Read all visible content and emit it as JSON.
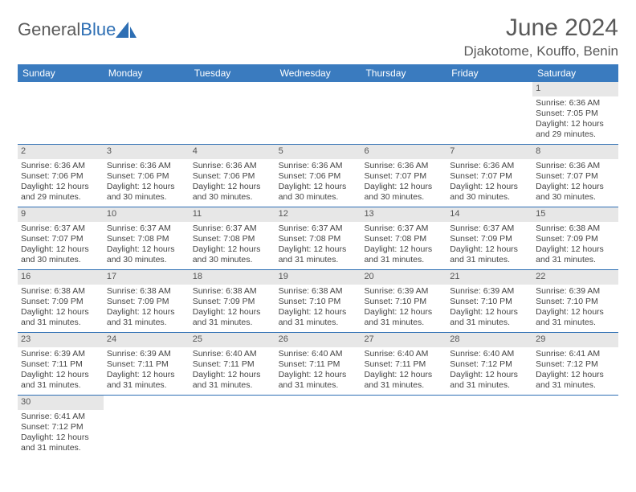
{
  "logo": {
    "text1": "General",
    "text2": "Blue"
  },
  "title": "June 2024",
  "location": "Djakotome, Kouffo, Benin",
  "colors": {
    "header_bg": "#3a7bbf",
    "border": "#2e6fb4",
    "daybar_bg": "#e7e7e7",
    "text_gray": "#595959"
  },
  "day_headers": [
    "Sunday",
    "Monday",
    "Tuesday",
    "Wednesday",
    "Thursday",
    "Friday",
    "Saturday"
  ],
  "weeks": [
    [
      null,
      null,
      null,
      null,
      null,
      null,
      {
        "n": "1",
        "sr": "Sunrise: 6:36 AM",
        "ss": "Sunset: 7:05 PM",
        "d1": "Daylight: 12 hours",
        "d2": "and 29 minutes."
      }
    ],
    [
      {
        "n": "2",
        "sr": "Sunrise: 6:36 AM",
        "ss": "Sunset: 7:06 PM",
        "d1": "Daylight: 12 hours",
        "d2": "and 29 minutes."
      },
      {
        "n": "3",
        "sr": "Sunrise: 6:36 AM",
        "ss": "Sunset: 7:06 PM",
        "d1": "Daylight: 12 hours",
        "d2": "and 30 minutes."
      },
      {
        "n": "4",
        "sr": "Sunrise: 6:36 AM",
        "ss": "Sunset: 7:06 PM",
        "d1": "Daylight: 12 hours",
        "d2": "and 30 minutes."
      },
      {
        "n": "5",
        "sr": "Sunrise: 6:36 AM",
        "ss": "Sunset: 7:06 PM",
        "d1": "Daylight: 12 hours",
        "d2": "and 30 minutes."
      },
      {
        "n": "6",
        "sr": "Sunrise: 6:36 AM",
        "ss": "Sunset: 7:07 PM",
        "d1": "Daylight: 12 hours",
        "d2": "and 30 minutes."
      },
      {
        "n": "7",
        "sr": "Sunrise: 6:36 AM",
        "ss": "Sunset: 7:07 PM",
        "d1": "Daylight: 12 hours",
        "d2": "and 30 minutes."
      },
      {
        "n": "8",
        "sr": "Sunrise: 6:36 AM",
        "ss": "Sunset: 7:07 PM",
        "d1": "Daylight: 12 hours",
        "d2": "and 30 minutes."
      }
    ],
    [
      {
        "n": "9",
        "sr": "Sunrise: 6:37 AM",
        "ss": "Sunset: 7:07 PM",
        "d1": "Daylight: 12 hours",
        "d2": "and 30 minutes."
      },
      {
        "n": "10",
        "sr": "Sunrise: 6:37 AM",
        "ss": "Sunset: 7:08 PM",
        "d1": "Daylight: 12 hours",
        "d2": "and 30 minutes."
      },
      {
        "n": "11",
        "sr": "Sunrise: 6:37 AM",
        "ss": "Sunset: 7:08 PM",
        "d1": "Daylight: 12 hours",
        "d2": "and 30 minutes."
      },
      {
        "n": "12",
        "sr": "Sunrise: 6:37 AM",
        "ss": "Sunset: 7:08 PM",
        "d1": "Daylight: 12 hours",
        "d2": "and 31 minutes."
      },
      {
        "n": "13",
        "sr": "Sunrise: 6:37 AM",
        "ss": "Sunset: 7:08 PM",
        "d1": "Daylight: 12 hours",
        "d2": "and 31 minutes."
      },
      {
        "n": "14",
        "sr": "Sunrise: 6:37 AM",
        "ss": "Sunset: 7:09 PM",
        "d1": "Daylight: 12 hours",
        "d2": "and 31 minutes."
      },
      {
        "n": "15",
        "sr": "Sunrise: 6:38 AM",
        "ss": "Sunset: 7:09 PM",
        "d1": "Daylight: 12 hours",
        "d2": "and 31 minutes."
      }
    ],
    [
      {
        "n": "16",
        "sr": "Sunrise: 6:38 AM",
        "ss": "Sunset: 7:09 PM",
        "d1": "Daylight: 12 hours",
        "d2": "and 31 minutes."
      },
      {
        "n": "17",
        "sr": "Sunrise: 6:38 AM",
        "ss": "Sunset: 7:09 PM",
        "d1": "Daylight: 12 hours",
        "d2": "and 31 minutes."
      },
      {
        "n": "18",
        "sr": "Sunrise: 6:38 AM",
        "ss": "Sunset: 7:09 PM",
        "d1": "Daylight: 12 hours",
        "d2": "and 31 minutes."
      },
      {
        "n": "19",
        "sr": "Sunrise: 6:38 AM",
        "ss": "Sunset: 7:10 PM",
        "d1": "Daylight: 12 hours",
        "d2": "and 31 minutes."
      },
      {
        "n": "20",
        "sr": "Sunrise: 6:39 AM",
        "ss": "Sunset: 7:10 PM",
        "d1": "Daylight: 12 hours",
        "d2": "and 31 minutes."
      },
      {
        "n": "21",
        "sr": "Sunrise: 6:39 AM",
        "ss": "Sunset: 7:10 PM",
        "d1": "Daylight: 12 hours",
        "d2": "and 31 minutes."
      },
      {
        "n": "22",
        "sr": "Sunrise: 6:39 AM",
        "ss": "Sunset: 7:10 PM",
        "d1": "Daylight: 12 hours",
        "d2": "and 31 minutes."
      }
    ],
    [
      {
        "n": "23",
        "sr": "Sunrise: 6:39 AM",
        "ss": "Sunset: 7:11 PM",
        "d1": "Daylight: 12 hours",
        "d2": "and 31 minutes."
      },
      {
        "n": "24",
        "sr": "Sunrise: 6:39 AM",
        "ss": "Sunset: 7:11 PM",
        "d1": "Daylight: 12 hours",
        "d2": "and 31 minutes."
      },
      {
        "n": "25",
        "sr": "Sunrise: 6:40 AM",
        "ss": "Sunset: 7:11 PM",
        "d1": "Daylight: 12 hours",
        "d2": "and 31 minutes."
      },
      {
        "n": "26",
        "sr": "Sunrise: 6:40 AM",
        "ss": "Sunset: 7:11 PM",
        "d1": "Daylight: 12 hours",
        "d2": "and 31 minutes."
      },
      {
        "n": "27",
        "sr": "Sunrise: 6:40 AM",
        "ss": "Sunset: 7:11 PM",
        "d1": "Daylight: 12 hours",
        "d2": "and 31 minutes."
      },
      {
        "n": "28",
        "sr": "Sunrise: 6:40 AM",
        "ss": "Sunset: 7:12 PM",
        "d1": "Daylight: 12 hours",
        "d2": "and 31 minutes."
      },
      {
        "n": "29",
        "sr": "Sunrise: 6:41 AM",
        "ss": "Sunset: 7:12 PM",
        "d1": "Daylight: 12 hours",
        "d2": "and 31 minutes."
      }
    ],
    [
      {
        "n": "30",
        "sr": "Sunrise: 6:41 AM",
        "ss": "Sunset: 7:12 PM",
        "d1": "Daylight: 12 hours",
        "d2": "and 31 minutes."
      },
      null,
      null,
      null,
      null,
      null,
      null
    ]
  ]
}
